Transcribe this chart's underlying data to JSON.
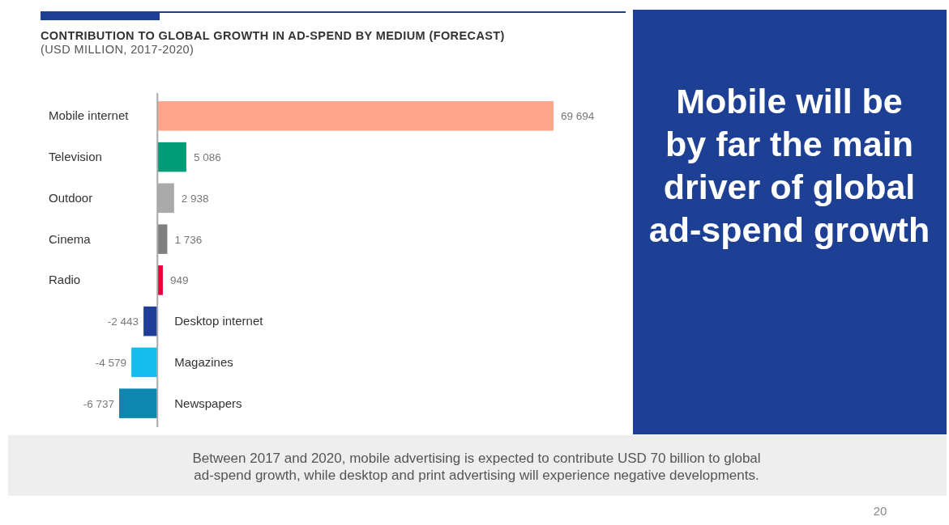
{
  "chart_data": {
    "type": "bar",
    "orientation": "horizontal",
    "title": "CONTRIBUTION TO GLOBAL GROWTH IN AD-SPEND BY MEDIUM (FORECAST)",
    "subtitle": "(USD MILLION, 2017-2020)",
    "categories": [
      "Mobile internet",
      "Television",
      "Outdoor",
      "Cinema",
      "Radio",
      "Desktop internet",
      "Magazines",
      "Newspapers"
    ],
    "values": [
      69694,
      5086,
      2938,
      1736,
      949,
      -2443,
      -4579,
      -6737
    ],
    "colors": [
      "#ffa58a",
      "#009b77",
      "#aaaaaa",
      "#808080",
      "#e4003a",
      "#1f3f99",
      "#12bcec",
      "#0e87b0"
    ],
    "value_labels": [
      "69 694",
      "5 086",
      "2 938",
      "1 736",
      "949",
      "-2 443",
      "-4 579",
      "-6 737"
    ],
    "annotations": [
      "Mobile will be by far the main driver of global ad-spend growth",
      "Between 2017 and 2020, mobile advertising is expected to contribute USD 70 billion to global ad-spend growth, while desktop and print advertising will experience negative developments.",
      "20"
    ]
  }
}
